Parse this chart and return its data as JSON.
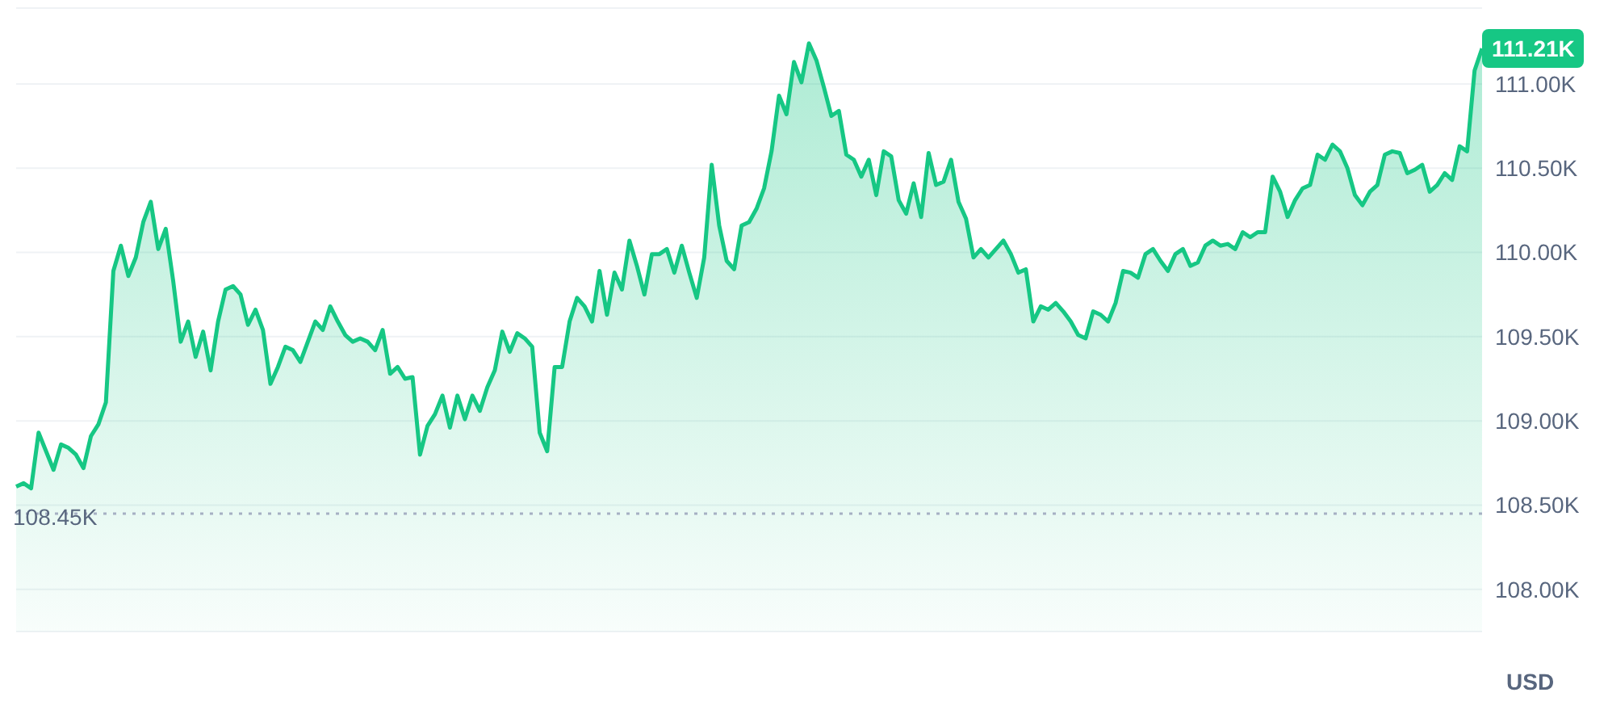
{
  "chart_data": {
    "type": "area",
    "ylabel": "USD",
    "categories": [
      null,
      null,
      null,
      null,
      null,
      null,
      null,
      null,
      null,
      null,
      null,
      null,
      null,
      null,
      null,
      null,
      null,
      null,
      null,
      null,
      null,
      null,
      null,
      null,
      null,
      null,
      null,
      null,
      null,
      null,
      null,
      null,
      null,
      null,
      null,
      null,
      null,
      null,
      null,
      null,
      null,
      null,
      null,
      null,
      null,
      null,
      null,
      null,
      null,
      null,
      null,
      null,
      null,
      null,
      null,
      null,
      null,
      null,
      null,
      null,
      null,
      null,
      null,
      null,
      null,
      null,
      null,
      null,
      null,
      null,
      null,
      null,
      null,
      null,
      null,
      null,
      null,
      null,
      null,
      null,
      null,
      null,
      null,
      null,
      null,
      null,
      null,
      null,
      null,
      null,
      null,
      null,
      null,
      null,
      null,
      null,
      null,
      null,
      null,
      null,
      null,
      null,
      null,
      null,
      null,
      null,
      null,
      null,
      null,
      null,
      null,
      null,
      null,
      null,
      null,
      null,
      null,
      null,
      null,
      null,
      null,
      null,
      null,
      null,
      null,
      null,
      null,
      null,
      null,
      null,
      null,
      null,
      null,
      null,
      null,
      null,
      null,
      null,
      null,
      null,
      null,
      null,
      null,
      null,
      null,
      null,
      null,
      null,
      null,
      null,
      null,
      null,
      null,
      null,
      null,
      null,
      null,
      null,
      null,
      null,
      null,
      null,
      null,
      null,
      null,
      null,
      null,
      null,
      null,
      null,
      null,
      null,
      null,
      null,
      null,
      null,
      null,
      null,
      null,
      null,
      null,
      null,
      null,
      null,
      null,
      null,
      null,
      null,
      null,
      null,
      null,
      null,
      null,
      null,
      null,
      null,
      null
    ],
    "series": [
      {
        "color": "#16c784",
        "values": [
          108.61,
          108.63,
          108.6,
          108.93,
          108.82,
          108.71,
          108.86,
          108.84,
          108.8,
          108.72,
          108.91,
          108.98,
          109.11,
          109.89,
          110.04,
          109.86,
          109.97,
          110.18,
          110.3,
          110.02,
          110.14,
          109.83,
          109.47,
          109.59,
          109.38,
          109.53,
          109.3,
          109.59,
          109.78,
          109.8,
          109.75,
          109.57,
          109.66,
          109.54,
          109.22,
          109.32,
          109.44,
          109.42,
          109.35,
          109.47,
          109.59,
          109.54,
          109.68,
          109.59,
          109.51,
          109.47,
          109.49,
          109.47,
          109.42,
          109.54,
          109.28,
          109.32,
          109.25,
          109.26,
          108.8,
          108.97,
          109.04,
          109.15,
          108.96,
          109.15,
          109.01,
          109.15,
          109.06,
          109.2,
          109.3,
          109.53,
          109.41,
          109.52,
          109.49,
          109.44,
          108.93,
          108.82,
          109.32,
          109.32,
          109.59,
          109.73,
          109.68,
          109.59,
          109.89,
          109.63,
          109.88,
          109.78,
          110.07,
          109.92,
          109.75,
          109.99,
          109.99,
          110.02,
          109.88,
          110.04,
          109.88,
          109.73,
          109.97,
          110.52,
          110.16,
          109.95,
          109.9,
          110.16,
          110.18,
          110.26,
          110.38,
          110.6,
          110.93,
          110.82,
          111.13,
          111.01,
          111.24,
          111.14,
          110.98,
          110.81,
          110.84,
          110.58,
          110.55,
          110.45,
          110.55,
          110.34,
          110.6,
          110.57,
          110.31,
          110.23,
          110.41,
          110.21,
          110.59,
          110.4,
          110.42,
          110.55,
          110.3,
          110.2,
          109.97,
          110.02,
          109.97,
          110.02,
          110.07,
          109.99,
          109.88,
          109.9,
          109.59,
          109.68,
          109.66,
          109.7,
          109.65,
          109.59,
          109.51,
          109.49,
          109.65,
          109.63,
          109.59,
          109.7,
          109.89,
          109.88,
          109.85,
          109.99,
          110.02,
          109.95,
          109.89,
          109.99,
          110.02,
          109.92,
          109.94,
          110.04,
          110.07,
          110.04,
          110.05,
          110.02,
          110.12,
          110.09,
          110.12,
          110.12,
          110.45,
          110.36,
          110.21,
          110.31,
          110.38,
          110.4,
          110.58,
          110.55,
          110.64,
          110.6,
          110.5,
          110.34,
          110.28,
          110.36,
          110.4,
          110.58,
          110.6,
          110.59,
          110.47,
          110.49,
          110.52,
          110.36,
          110.4,
          110.47,
          110.43,
          110.63,
          110.6,
          111.08,
          111.21
        ]
      }
    ],
    "ylim": [
      107.75,
      111.45
    ],
    "yticks": [
      {
        "value": 108,
        "label": "108.00K"
      },
      {
        "value": 108.5,
        "label": "108.50K"
      },
      {
        "value": 109,
        "label": "109.00K"
      },
      {
        "value": 109.5,
        "label": "109.50K"
      },
      {
        "value": 110,
        "label": "110.00K"
      },
      {
        "value": 110.5,
        "label": "110.50K"
      },
      {
        "value": 111,
        "label": "111.00K"
      }
    ],
    "grid": "y",
    "legend": false,
    "marker": "none",
    "ref_lines": [
      {
        "axis": "y",
        "value": 108.45,
        "label": "108.45K",
        "color": "#a6b0c3",
        "line_style": "dotted"
      }
    ],
    "annotations": [
      "111.21K"
    ]
  }
}
